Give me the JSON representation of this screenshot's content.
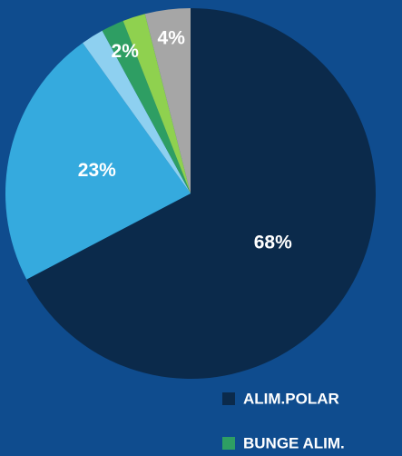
{
  "chart_data": {
    "type": "pie",
    "categories": [
      "ALIM.POLAR",
      null,
      null,
      "BUNGE ALIM.",
      null,
      null
    ],
    "values": [
      68,
      23,
      2,
      2,
      2,
      4
    ],
    "value_labels": [
      "68%",
      "23%",
      null,
      "2%",
      null,
      "4%"
    ],
    "colors": [
      "#0b2a4b",
      "#35aade",
      "#8ed0f0",
      "#2e9e63",
      "#8fd14f",
      "#a6a6a6"
    ]
  }
}
